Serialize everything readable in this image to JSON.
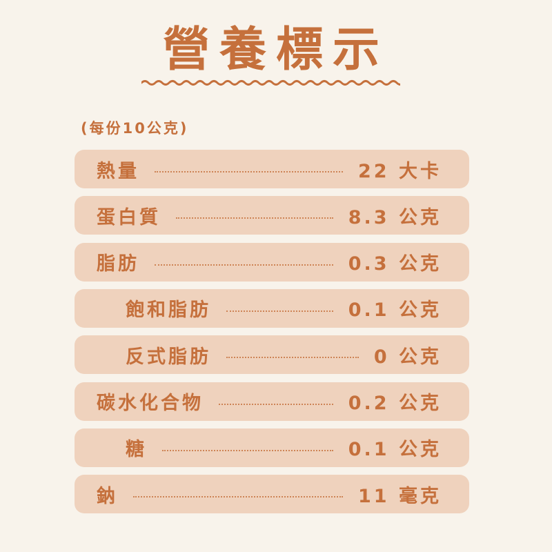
{
  "title": "營養標示",
  "serving": "(每份10公克)",
  "colors": {
    "text": "#c5703c",
    "row": "#efd2bd",
    "background": "#f8f3eb"
  },
  "rows": [
    {
      "label": "熱量",
      "value": "22 大卡",
      "sub": false
    },
    {
      "label": "蛋白質",
      "value": "8.3 公克",
      "sub": false
    },
    {
      "label": "脂肪",
      "value": "0.3 公克",
      "sub": false
    },
    {
      "label": "飽和脂肪",
      "value": "0.1 公克",
      "sub": true
    },
    {
      "label": "反式脂肪",
      "value": "0 公克",
      "sub": true
    },
    {
      "label": "碳水化合物",
      "value": "0.2 公克",
      "sub": false
    },
    {
      "label": "糖",
      "value": "0.1 公克",
      "sub": true
    },
    {
      "label": "鈉",
      "value": "11 毫克",
      "sub": false
    }
  ]
}
